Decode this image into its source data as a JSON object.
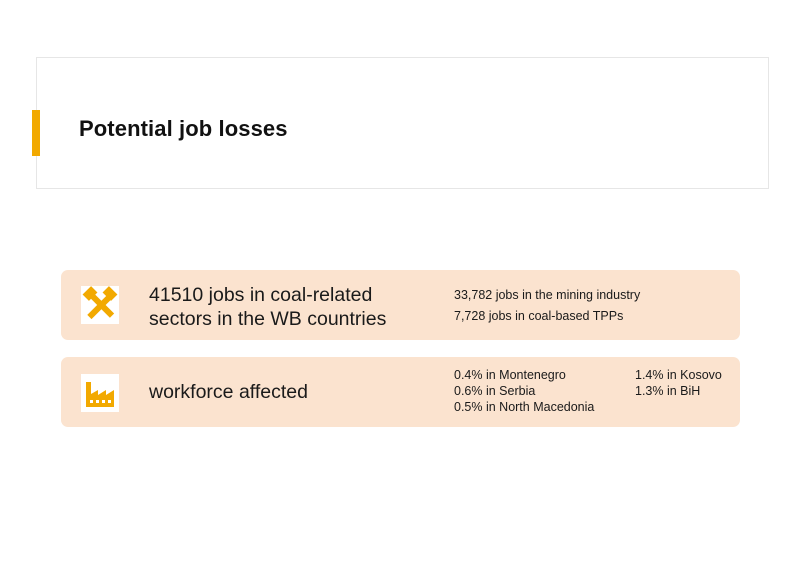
{
  "slide": {
    "title": "Potential job losses"
  },
  "colors": {
    "accent": "#f2a900",
    "card_bg": "#fbe3cf",
    "icon_bg": "#ffffff"
  },
  "cards": [
    {
      "icon": "hammer-pick-icon",
      "main_text": "41510 jobs in coal-related sectors in the WB countries",
      "main_line1": "41510 jobs in coal-related",
      "main_line2": "sectors in the WB countries",
      "details": [
        "33,782 jobs in the mining industry",
        "7,728 jobs in coal-based TPPs"
      ]
    },
    {
      "icon": "factory-icon",
      "main_text": "workforce affected",
      "details": [
        "0.4% in Montenegro",
        "0.6% in Serbia",
        "0.5% in North Macedonia",
        "1.4% in Kosovo",
        "1.3% in BiH"
      ]
    }
  ]
}
